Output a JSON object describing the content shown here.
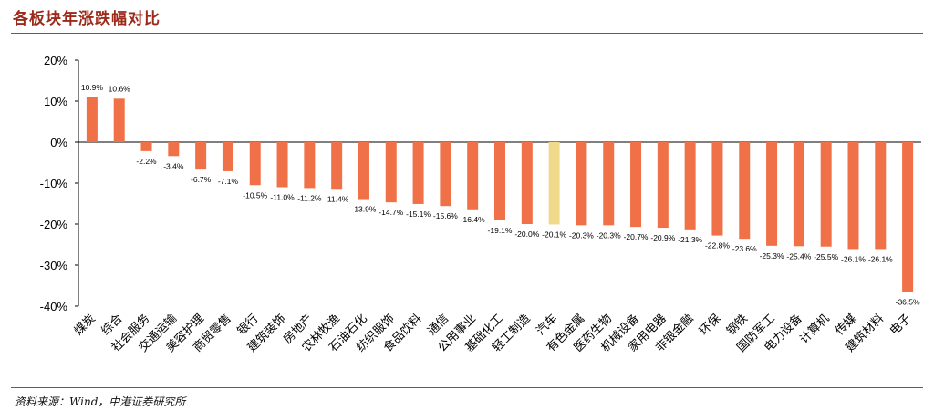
{
  "title": "各板块年涨跌幅对比",
  "source": "资料来源：Wind，中港证券研究所",
  "colors": {
    "bar": "#f07148",
    "highlight": "#f0d98a",
    "axis": "#000000",
    "title": "#9b2a1a"
  },
  "chart_data": {
    "type": "bar",
    "title": "各板块年涨跌幅对比",
    "xlabel": "",
    "ylabel": "",
    "ylim": [
      -40,
      20
    ],
    "yticks": [
      20,
      10,
      0,
      -10,
      -20,
      -30,
      -40
    ],
    "ytick_labels": [
      "20%",
      "10%",
      "0%",
      "-10%",
      "-20%",
      "-30%",
      "-40%"
    ],
    "grid": false,
    "highlight_category": "汽车",
    "categories": [
      "煤炭",
      "综合",
      "社会服务",
      "交通运输",
      "美容护理",
      "商贸零售",
      "银行",
      "建筑装饰",
      "房地产",
      "农林牧渔",
      "石油石化",
      "纺织服饰",
      "食品饮料",
      "通信",
      "公用事业",
      "基础化工",
      "轻工制造",
      "汽车",
      "有色金属",
      "医药生物",
      "机械设备",
      "家用电器",
      "非银金融",
      "环保",
      "钢铁",
      "国防军工",
      "电力设备",
      "计算机",
      "传媒",
      "建筑材料",
      "电子"
    ],
    "values": [
      10.9,
      10.6,
      -2.2,
      -3.4,
      -6.7,
      -7.1,
      -10.5,
      -11.0,
      -11.2,
      -11.4,
      -13.9,
      -14.7,
      -15.1,
      -15.6,
      -16.4,
      -19.1,
      -20.0,
      -20.1,
      -20.3,
      -20.3,
      -20.7,
      -20.9,
      -21.3,
      -22.8,
      -23.6,
      -25.3,
      -25.4,
      -25.5,
      -26.1,
      -26.1,
      -36.5
    ],
    "data_labels": [
      "10.9%",
      "10.6%",
      "-2.2%",
      "-3.4%",
      "-6.7%",
      "-7.1%",
      "-10.5%",
      "-11.0%",
      "-11.2%",
      "-11.4%",
      "-13.9%",
      "-14.7%",
      "-15.1%",
      "-15.6%",
      "-16.4%",
      "-19.1%",
      "-20.0%",
      "-20.1%",
      "-20.3%",
      "-20.3%",
      "-20.7%",
      "-20.9%",
      "-21.3%",
      "-22.8%",
      "-23.6%",
      "-25.3%",
      "-25.4%",
      "-25.5%",
      "-26.1%",
      "-26.1%",
      "-36.5%"
    ]
  }
}
